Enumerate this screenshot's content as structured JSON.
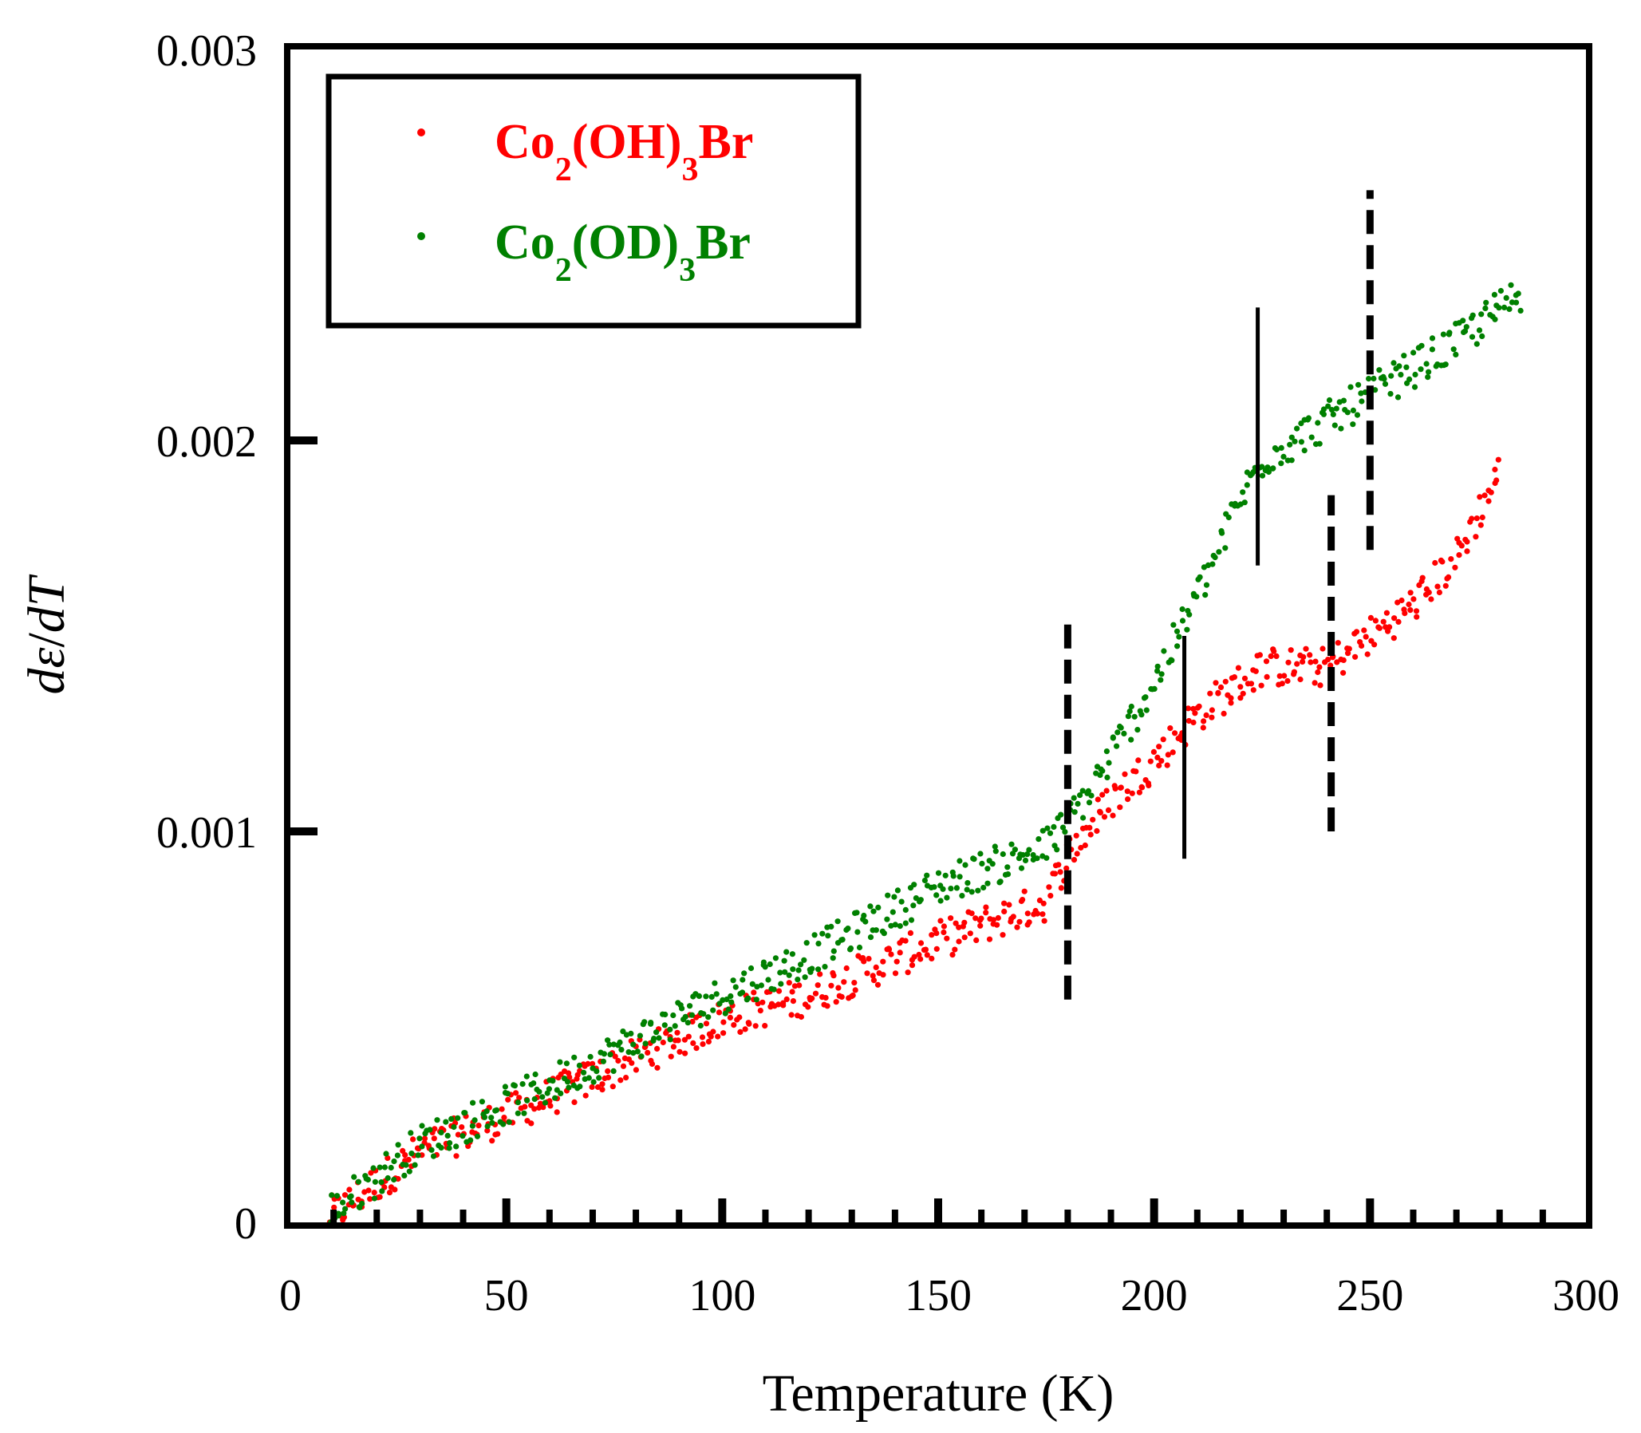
{
  "chart_data": {
    "type": "scatter",
    "title": "",
    "xlabel": "Temperature (K)",
    "ylabel_d1": "d",
    "ylabel_eps": "ε",
    "ylabel_sep": "/",
    "ylabel_d2": "d",
    "ylabel_T": "T",
    "xlim": [
      0,
      300
    ],
    "ylim": [
      0,
      0.003
    ],
    "x_ticks": [
      0,
      50,
      100,
      150,
      200,
      250,
      300
    ],
    "x_tick_labels": [
      "0",
      "50",
      "100",
      "150",
      "200",
      "250",
      "300"
    ],
    "y_ticks": [
      0,
      0.001,
      0.002,
      0.003
    ],
    "y_tick_labels": [
      "0",
      "0.001",
      "0.002",
      "0.003"
    ],
    "legend_position": "top-left",
    "series": [
      {
        "name": "Co2(OH)3Br",
        "legend_parts": [
          "Co",
          "2",
          "(OH)",
          "3",
          "Br"
        ],
        "color": "#ff0000",
        "trend": [
          [
            10,
            2e-05
          ],
          [
            30,
            0.00018
          ],
          [
            60,
            0.00032
          ],
          [
            100,
            0.00052
          ],
          [
            120,
            0.00058
          ],
          [
            150,
            0.00072
          ],
          [
            175,
            0.00082
          ],
          [
            180,
            0.00094
          ],
          [
            190,
            0.00108
          ],
          [
            200,
            0.00118
          ],
          [
            210,
            0.0013
          ],
          [
            225,
            0.00142
          ],
          [
            240,
            0.00142
          ],
          [
            250,
            0.0015
          ],
          [
            260,
            0.00158
          ],
          [
            270,
            0.0017
          ],
          [
            280,
            0.00192
          ]
        ],
        "x_range": [
          9,
          280
        ],
        "noise": 5e-05
      },
      {
        "name": "Co2(OD)3Br",
        "legend_parts": [
          "Co",
          "2",
          "(OD)",
          "3",
          "Br"
        ],
        "color": "#008000",
        "trend": [
          [
            10,
            3e-05
          ],
          [
            30,
            0.0002
          ],
          [
            60,
            0.00035
          ],
          [
            100,
            0.00058
          ],
          [
            120,
            0.00068
          ],
          [
            150,
            0.00086
          ],
          [
            175,
            0.00096
          ],
          [
            185,
            0.0011
          ],
          [
            200,
            0.00138
          ],
          [
            210,
            0.0016
          ],
          [
            220,
            0.00185
          ],
          [
            225,
            0.00195
          ],
          [
            240,
            0.00205
          ],
          [
            255,
            0.00215
          ],
          [
            270,
            0.00225
          ],
          [
            285,
            0.00238
          ]
        ],
        "x_range": [
          9,
          285
        ],
        "noise": 5e-05
      }
    ],
    "annotations": {
      "dashed_lines": [
        {
          "x": 180,
          "y_from": 0.00057,
          "y_to": 0.00155
        },
        {
          "x": 241,
          "y_from": 0.001,
          "y_to": 0.00186
        },
        {
          "x": 250,
          "y_from": 0.00172,
          "y_to": 0.00264
        }
      ],
      "solid_lines": [
        {
          "x": 207,
          "y_from": 0.00093,
          "y_to": 0.0015
        },
        {
          "x": 224,
          "y_from": 0.00168,
          "y_to": 0.00234
        }
      ]
    }
  }
}
